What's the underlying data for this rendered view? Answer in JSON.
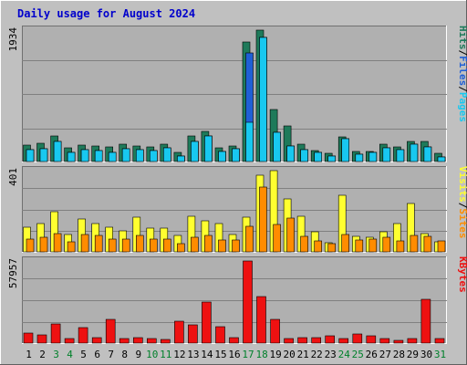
{
  "chart_data": {
    "type": "bar",
    "title": "Daily usage for August 2024",
    "colors": {
      "title": "#0000cc",
      "background": "#c0c0c0",
      "plot": "#b0b0b0",
      "hits": "#1e7a5a",
      "files": "#1f5fd6",
      "pages": "#18c8f0",
      "visits": "#ffff30",
      "sites": "#ff8c00",
      "kbytes": "#ee1111",
      "weekend_label": "#00802b",
      "weekday_label": "#000000"
    },
    "days": [
      "1",
      "2",
      "3",
      "4",
      "5",
      "6",
      "7",
      "8",
      "9",
      "10",
      "11",
      "12",
      "13",
      "14",
      "15",
      "16",
      "17",
      "18",
      "19",
      "20",
      "21",
      "22",
      "23",
      "24",
      "25",
      "26",
      "27",
      "28",
      "29",
      "30",
      "31"
    ],
    "weekend_days": [
      "3",
      "4",
      "10",
      "11",
      "17",
      "18",
      "24",
      "25",
      "31"
    ],
    "panels": [
      {
        "id": "hits-files-pages",
        "max_label": "1934",
        "ymax": 1934,
        "series": [
          {
            "name": "Hits",
            "color": "#1e7a5a",
            "values": [
              240,
              270,
              380,
              200,
              240,
              230,
              210,
              255,
              225,
              220,
              255,
              130,
              370,
              440,
              200,
              230,
              1756,
              1934,
              760,
              530,
              255,
              155,
              120,
              360,
              150,
              145,
              250,
              220,
              300,
              290,
              120
            ]
          },
          {
            "name": "Files",
            "color": "#1f5fd6",
            "values": [
              170,
              190,
              290,
              130,
              180,
              165,
              135,
              185,
              170,
              165,
              200,
              75,
              290,
              370,
              150,
              185,
              1600,
              1830,
              430,
              225,
              180,
              130,
              80,
              330,
              110,
              130,
              200,
              175,
              255,
              215,
              70
            ]
          },
          {
            "name": "Pages",
            "color": "#18c8f0",
            "values": [
              170,
              190,
              290,
              130,
              180,
              165,
              135,
              185,
              170,
              165,
              200,
              75,
              290,
              370,
              150,
              185,
              580,
              1830,
              430,
              225,
              180,
              130,
              80,
              330,
              110,
              130,
              200,
              175,
              255,
              215,
              70
            ]
          }
        ],
        "labels": [
          {
            "text": "Pages",
            "color": "#18c8f0"
          },
          {
            "text": "/",
            "color": "#000000"
          },
          {
            "text": "Files",
            "color": "#1f5fd6"
          },
          {
            "text": "/",
            "color": "#000000"
          },
          {
            "text": "Hits",
            "color": "#1e7a5a"
          }
        ]
      },
      {
        "id": "sites-visits",
        "max_label": "401",
        "ymax": 401,
        "series": [
          {
            "name": "Visits",
            "color": "#ffff30",
            "values": [
              120,
              140,
              200,
              85,
              160,
              140,
              120,
              105,
              170,
              115,
              115,
              80,
              175,
              155,
              140,
              85,
              170,
              380,
              401,
              260,
              175,
              100,
              45,
              280,
              75,
              70,
              100,
              140,
              240,
              90,
              50
            ]
          },
          {
            "name": "Sites",
            "color": "#ff8c00",
            "values": [
              65,
              70,
              90,
              50,
              85,
              80,
              65,
              65,
              80,
              65,
              65,
              40,
              70,
              80,
              60,
              60,
              125,
              320,
              135,
              165,
              75,
              55,
              40,
              85,
              60,
              65,
              70,
              55,
              80,
              75,
              55
            ]
          }
        ],
        "labels": [
          {
            "text": "Sites",
            "color": "#ff8c00"
          },
          {
            "text": "/",
            "color": "#000000"
          },
          {
            "text": "Visits",
            "color": "#ffff30"
          }
        ]
      },
      {
        "id": "kbytes",
        "max_label": "57957",
        "ymax": 57957,
        "series": [
          {
            "name": "KBytes",
            "color": "#ee1111",
            "values": [
              6800,
              5600,
              13800,
              3300,
              10800,
              3800,
              16500,
              3200,
              4100,
              3200,
              2800,
              15300,
              12600,
              28800,
              11500,
              3600,
              57957,
              33000,
              16500,
              3200,
              3900,
              4100,
              5300,
              2900,
              6300,
              5300,
              3300,
              1700,
              3500,
              31000,
              3200
            ]
          }
        ],
        "labels": [
          {
            "text": "KBytes",
            "color": "#ee1111"
          }
        ]
      }
    ]
  }
}
